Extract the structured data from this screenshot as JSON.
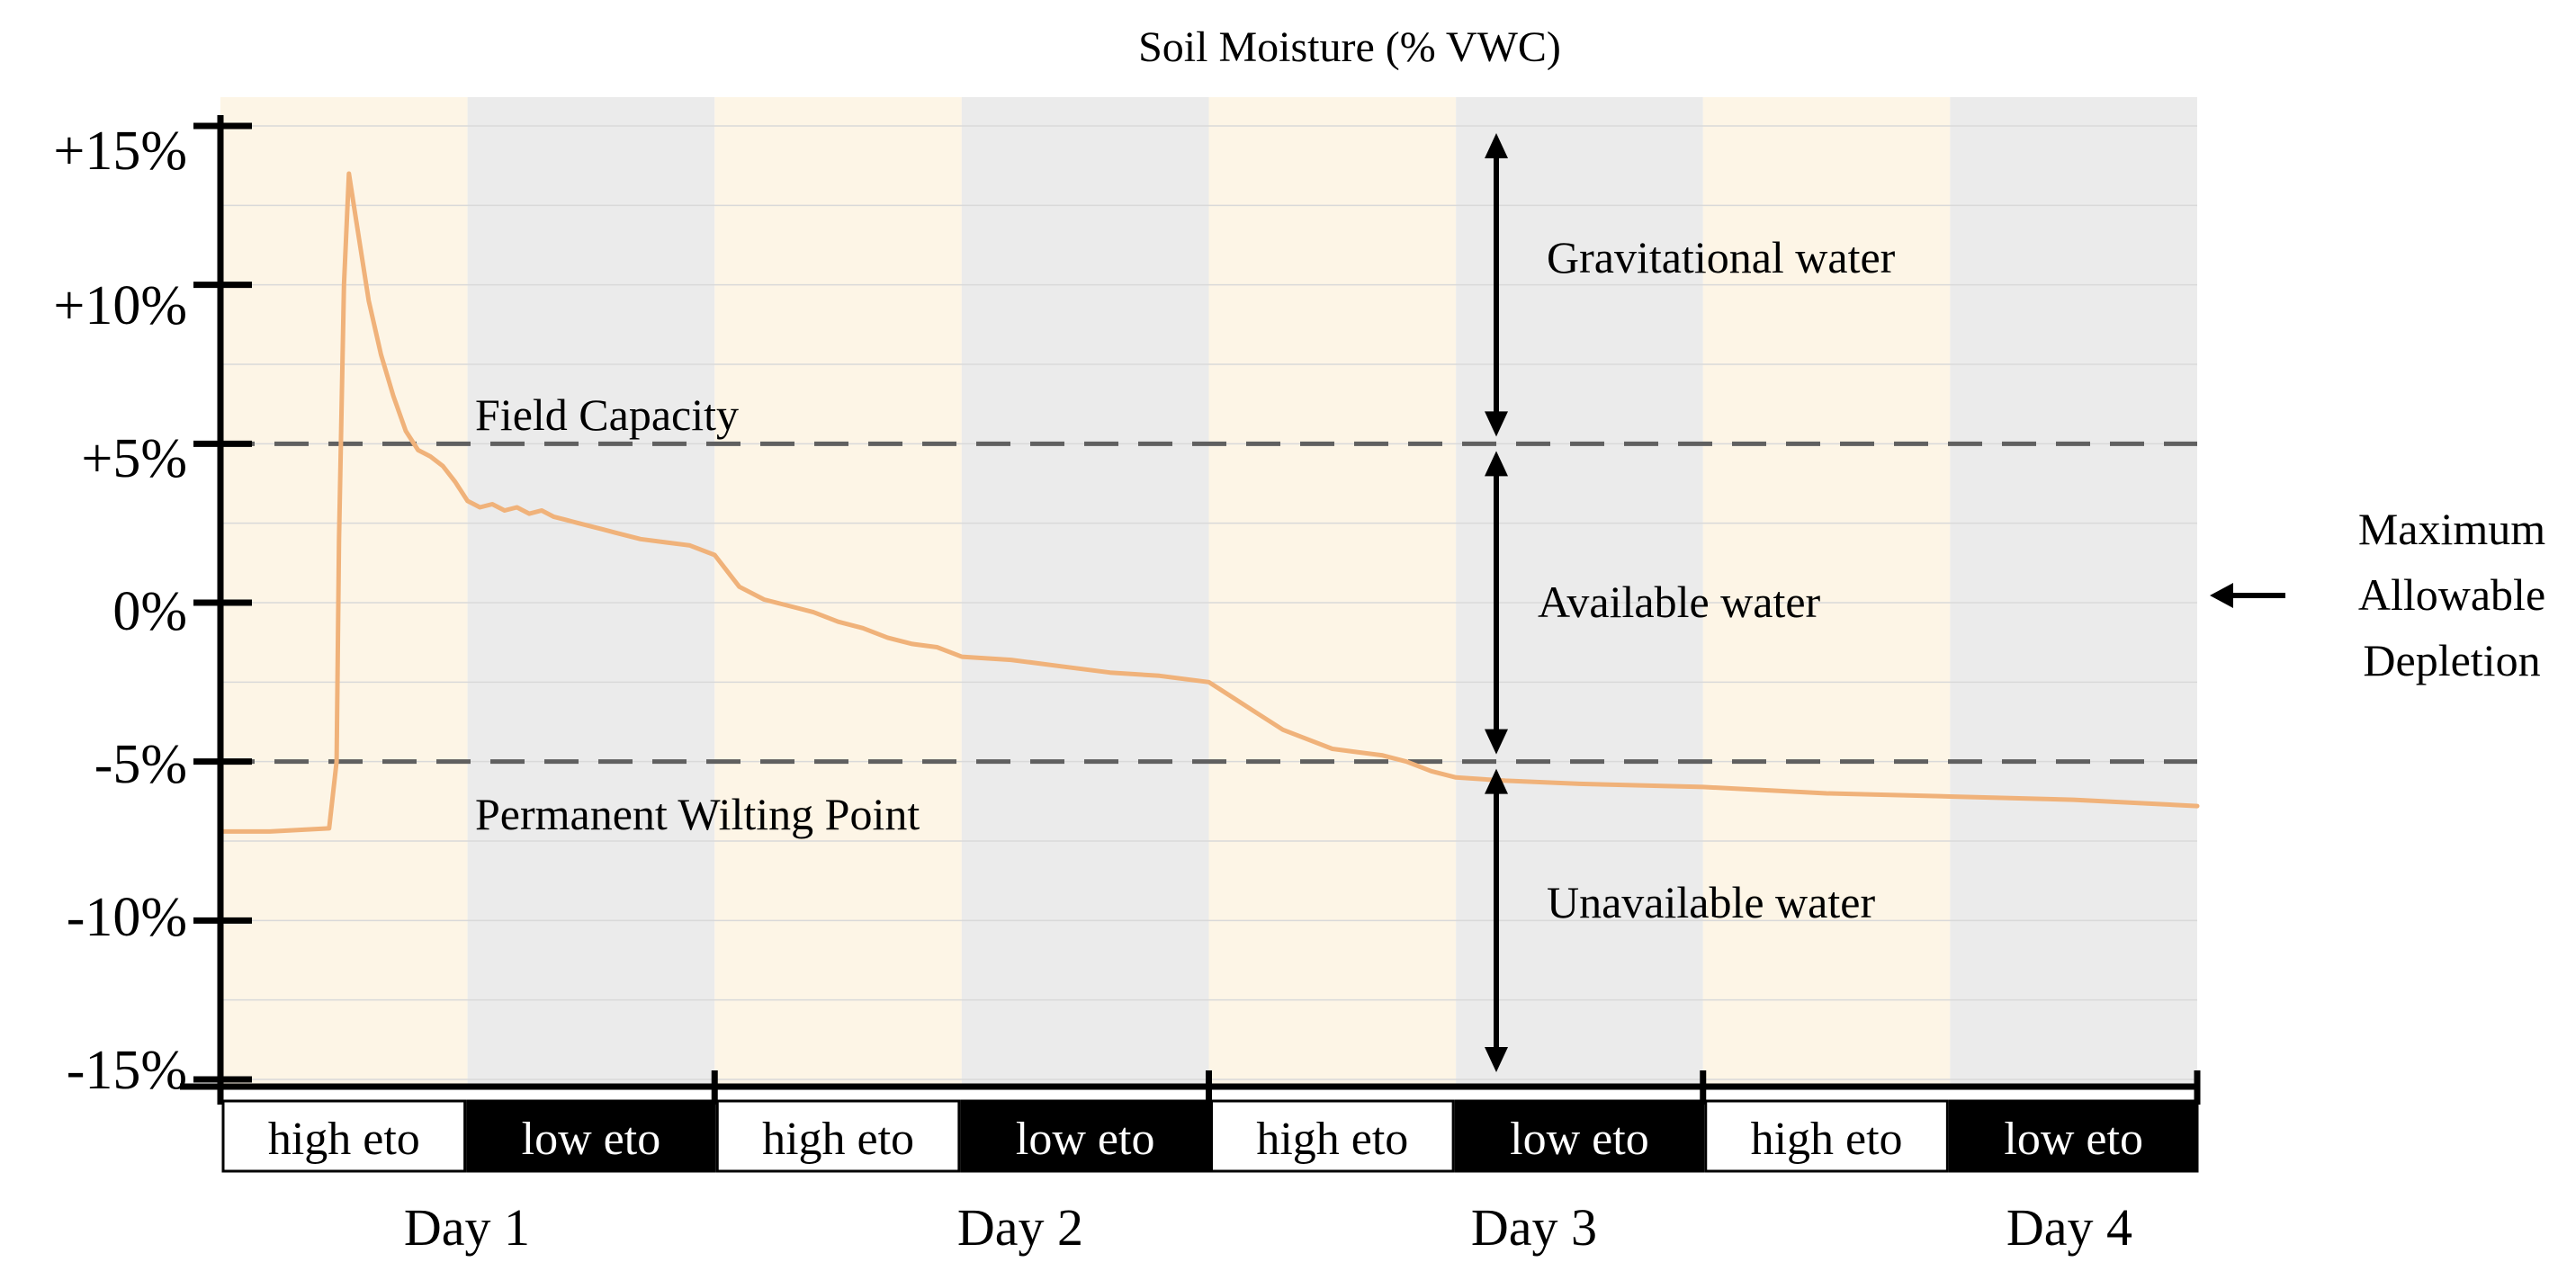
{
  "chart_data": {
    "type": "line",
    "title": "Soil Moisture (% VWC)",
    "xlabel": "",
    "ylabel": "",
    "xlim": [
      0,
      8
    ],
    "ylim": [
      -15,
      15
    ],
    "yticks": [
      {
        "value": 15,
        "label": "+15%"
      },
      {
        "value": 10,
        "label": "+10%"
      },
      {
        "value": 5,
        "label": "+5%"
      },
      {
        "value": 0,
        "label": "0%"
      },
      {
        "value": -5,
        "label": "-5%"
      },
      {
        "value": -10,
        "label": "-10%"
      },
      {
        "value": -15,
        "label": "-15%"
      }
    ],
    "grid": true,
    "day_labels": [
      {
        "x": 1,
        "label": "Day 1"
      },
      {
        "x": 3.2,
        "label": "Day 2"
      },
      {
        "x": 5.2,
        "label": "Day 3"
      },
      {
        "x": 7.5,
        "label": "Day 4"
      }
    ],
    "phases": [
      {
        "x0": 0,
        "x1": 1,
        "label": "high eto",
        "kind": "high"
      },
      {
        "x0": 1,
        "x1": 2,
        "label": "low eto",
        "kind": "low"
      },
      {
        "x0": 2,
        "x1": 3,
        "label": "high eto",
        "kind": "high"
      },
      {
        "x0": 3,
        "x1": 4,
        "label": "low eto",
        "kind": "low"
      },
      {
        "x0": 4,
        "x1": 5,
        "label": "high eto",
        "kind": "high"
      },
      {
        "x0": 5,
        "x1": 6,
        "label": "low eto",
        "kind": "low"
      },
      {
        "x0": 6,
        "x1": 7,
        "label": "high eto",
        "kind": "high"
      },
      {
        "x0": 7,
        "x1": 8,
        "label": "low eto",
        "kind": "low"
      }
    ],
    "reference_lines": [
      {
        "name": "field-capacity",
        "y": 5,
        "label": "Field Capacity"
      },
      {
        "name": "permanent-wilting-point",
        "y": -5,
        "label": "Permanent Wilting Point"
      }
    ],
    "zones": [
      {
        "name": "gravitational-water",
        "y0": 5,
        "y1": 15,
        "label": "Gravitational water"
      },
      {
        "name": "available-water",
        "y0": -5,
        "y1": 5,
        "label": "Available water"
      },
      {
        "name": "unavailable-water",
        "y0": -15,
        "y1": -5,
        "label": "Unavailable water"
      }
    ],
    "annotation": {
      "y": 0,
      "label": [
        "Maximum",
        "Allowable",
        "Depletion"
      ]
    },
    "series": [
      {
        "name": "soil-moisture",
        "x": [
          0,
          0.2,
          0.44,
          0.47,
          0.48,
          0.5,
          0.52,
          0.55,
          0.6,
          0.65,
          0.7,
          0.75,
          0.8,
          0.85,
          0.9,
          0.95,
          1.0,
          1.05,
          1.1,
          1.15,
          1.2,
          1.25,
          1.3,
          1.35,
          1.4,
          1.45,
          1.5,
          1.55,
          1.6,
          1.7,
          1.8,
          1.9,
          2.0,
          2.05,
          2.1,
          2.2,
          2.3,
          2.4,
          2.5,
          2.6,
          2.7,
          2.8,
          2.9,
          3.0,
          3.2,
          3.4,
          3.6,
          3.8,
          4.0,
          4.1,
          4.2,
          4.3,
          4.4,
          4.5,
          4.6,
          4.7,
          4.8,
          4.9,
          5.0,
          5.2,
          5.5,
          6.0,
          6.5,
          7.0,
          7.5,
          8.0
        ],
        "y": [
          -7.2,
          -7.2,
          -7.1,
          -5.0,
          2.0,
          10.0,
          13.5,
          12.0,
          9.5,
          7.8,
          6.5,
          5.4,
          4.8,
          4.6,
          4.3,
          3.8,
          3.2,
          3.0,
          3.1,
          2.9,
          3.0,
          2.8,
          2.9,
          2.7,
          2.6,
          2.5,
          2.4,
          2.3,
          2.2,
          2.0,
          1.9,
          1.8,
          1.5,
          1.0,
          0.5,
          0.1,
          -0.1,
          -0.3,
          -0.6,
          -0.8,
          -1.1,
          -1.3,
          -1.4,
          -1.7,
          -1.8,
          -2.0,
          -2.2,
          -2.3,
          -2.5,
          -3.0,
          -3.5,
          -4.0,
          -4.3,
          -4.6,
          -4.7,
          -4.8,
          -5.0,
          -5.3,
          -5.5,
          -5.6,
          -5.7,
          -5.8,
          -6.0,
          -6.1,
          -6.2,
          -6.4
        ]
      }
    ],
    "colors": {
      "high_bg": "#fdf5e6",
      "low_bg": "#ebebeb",
      "line": "#f0b27a",
      "dash": "#606060",
      "grid": "#d9d9d9"
    }
  }
}
